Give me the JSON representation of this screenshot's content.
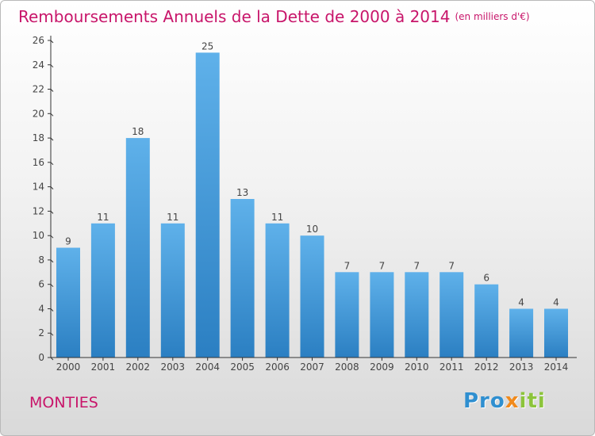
{
  "title": "Remboursements Annuels de la Dette de 2000 à 2014",
  "unit_note": "(en milliers d'€)",
  "town": "MONTIES",
  "logo": {
    "part1": "Pro",
    "part2": "x",
    "part3": "iti"
  },
  "colors": {
    "title": "#c8156a",
    "bar_top": "#5fb1ea",
    "bar_bottom": "#2b7fc2",
    "axis": "#333333"
  },
  "chart_data": {
    "type": "bar",
    "categories": [
      "2000",
      "2001",
      "2002",
      "2003",
      "2004",
      "2005",
      "2006",
      "2007",
      "2008",
      "2009",
      "2010",
      "2011",
      "2012",
      "2013",
      "2014"
    ],
    "values": [
      9,
      11,
      18,
      11,
      25,
      13,
      11,
      10,
      7,
      7,
      7,
      7,
      6,
      4,
      4
    ],
    "ylim": [
      0,
      26
    ],
    "yticks": [
      0,
      2,
      4,
      6,
      8,
      10,
      12,
      14,
      16,
      18,
      20,
      22,
      24,
      26
    ],
    "grid": false,
    "legend": "none"
  }
}
